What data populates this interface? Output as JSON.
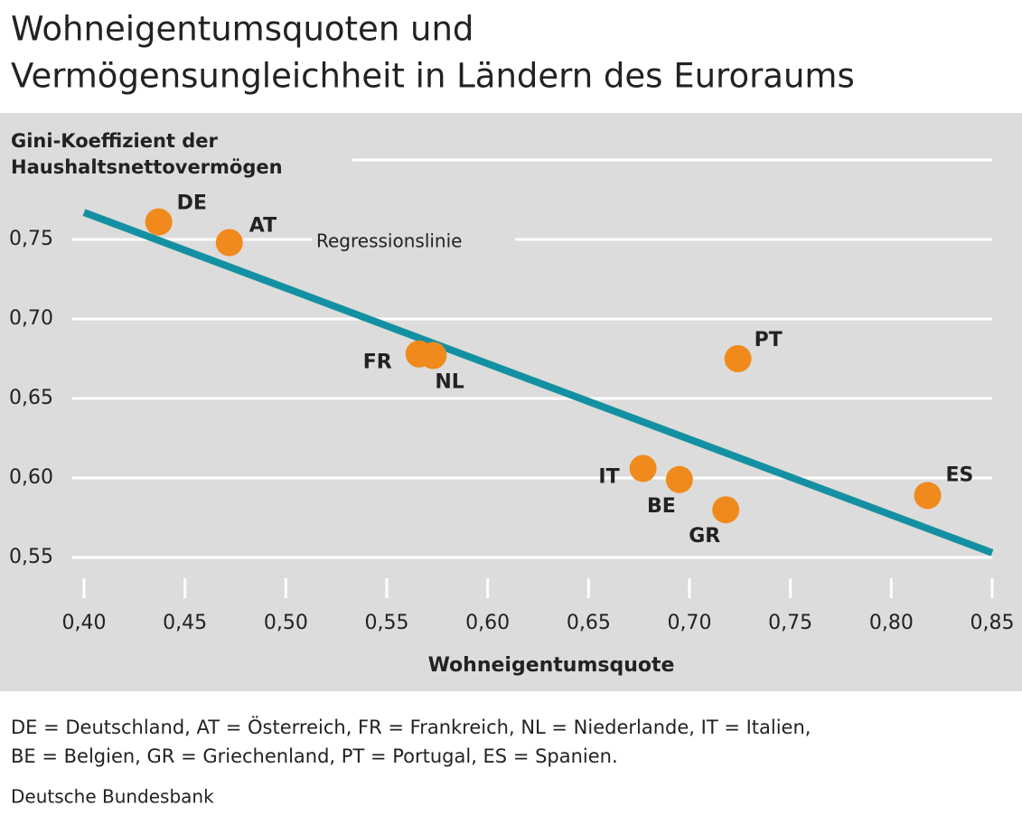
{
  "chart_data": {
    "type": "scatter",
    "title": [
      "Wohneigentumsquoten und",
      "Vermögensungleichheit in Ländern des Euroraums"
    ],
    "y_label": [
      "Gini-Koeffizient der",
      "Haushaltsnettovermögen"
    ],
    "x_label": "Wohneigentumsquote",
    "series": [
      {
        "color": "#f08a1c",
        "labels": [
          "DE",
          "AT",
          "FR",
          "NL",
          "PT",
          "IT",
          "BE",
          "GR",
          "ES"
        ],
        "x": [
          0.437,
          0.472,
          0.566,
          0.573,
          0.724,
          0.677,
          0.695,
          0.718,
          0.818
        ],
        "values": [
          0.761,
          0.748,
          0.678,
          0.677,
          0.675,
          0.606,
          0.599,
          0.58,
          0.589
        ]
      }
    ],
    "regression": {
      "label": "Regressionslinie",
      "color": "#1590a3",
      "x": [
        0.4,
        0.85
      ],
      "y": [
        0.767,
        0.553
      ]
    },
    "xlim": [
      0.4,
      0.85
    ],
    "xticks": [
      {
        "value": 0.4,
        "label": "0,40"
      },
      {
        "value": 0.45,
        "label": "0,45"
      },
      {
        "value": 0.5,
        "label": "0,50"
      },
      {
        "value": 0.55,
        "label": "0,55"
      },
      {
        "value": 0.6,
        "label": "0,60"
      },
      {
        "value": 0.65,
        "label": "0,65"
      },
      {
        "value": 0.7,
        "label": "0,70"
      },
      {
        "value": 0.75,
        "label": "0,75"
      },
      {
        "value": 0.8,
        "label": "0,80"
      },
      {
        "value": 0.85,
        "label": "0,85"
      }
    ],
    "ylim": [
      0.55,
      0.8
    ],
    "yticks": [
      {
        "value": 0.55,
        "label": "0,55"
      },
      {
        "value": 0.6,
        "label": "0,60"
      },
      {
        "value": 0.65,
        "label": "0,65"
      },
      {
        "value": 0.7,
        "label": "0,70"
      },
      {
        "value": 0.75,
        "label": "0,75"
      }
    ],
    "grid": true,
    "footnote": [
      "DE = Deutschland,   AT = Österreich,   FR = Frankreich,   NL = Niederlande,   IT = Italien,",
      "BE = Belgien,  GR = Griechenland,  PT =  Portugal,  ES = Spanien."
    ],
    "source": "Deutsche Bundesbank"
  }
}
